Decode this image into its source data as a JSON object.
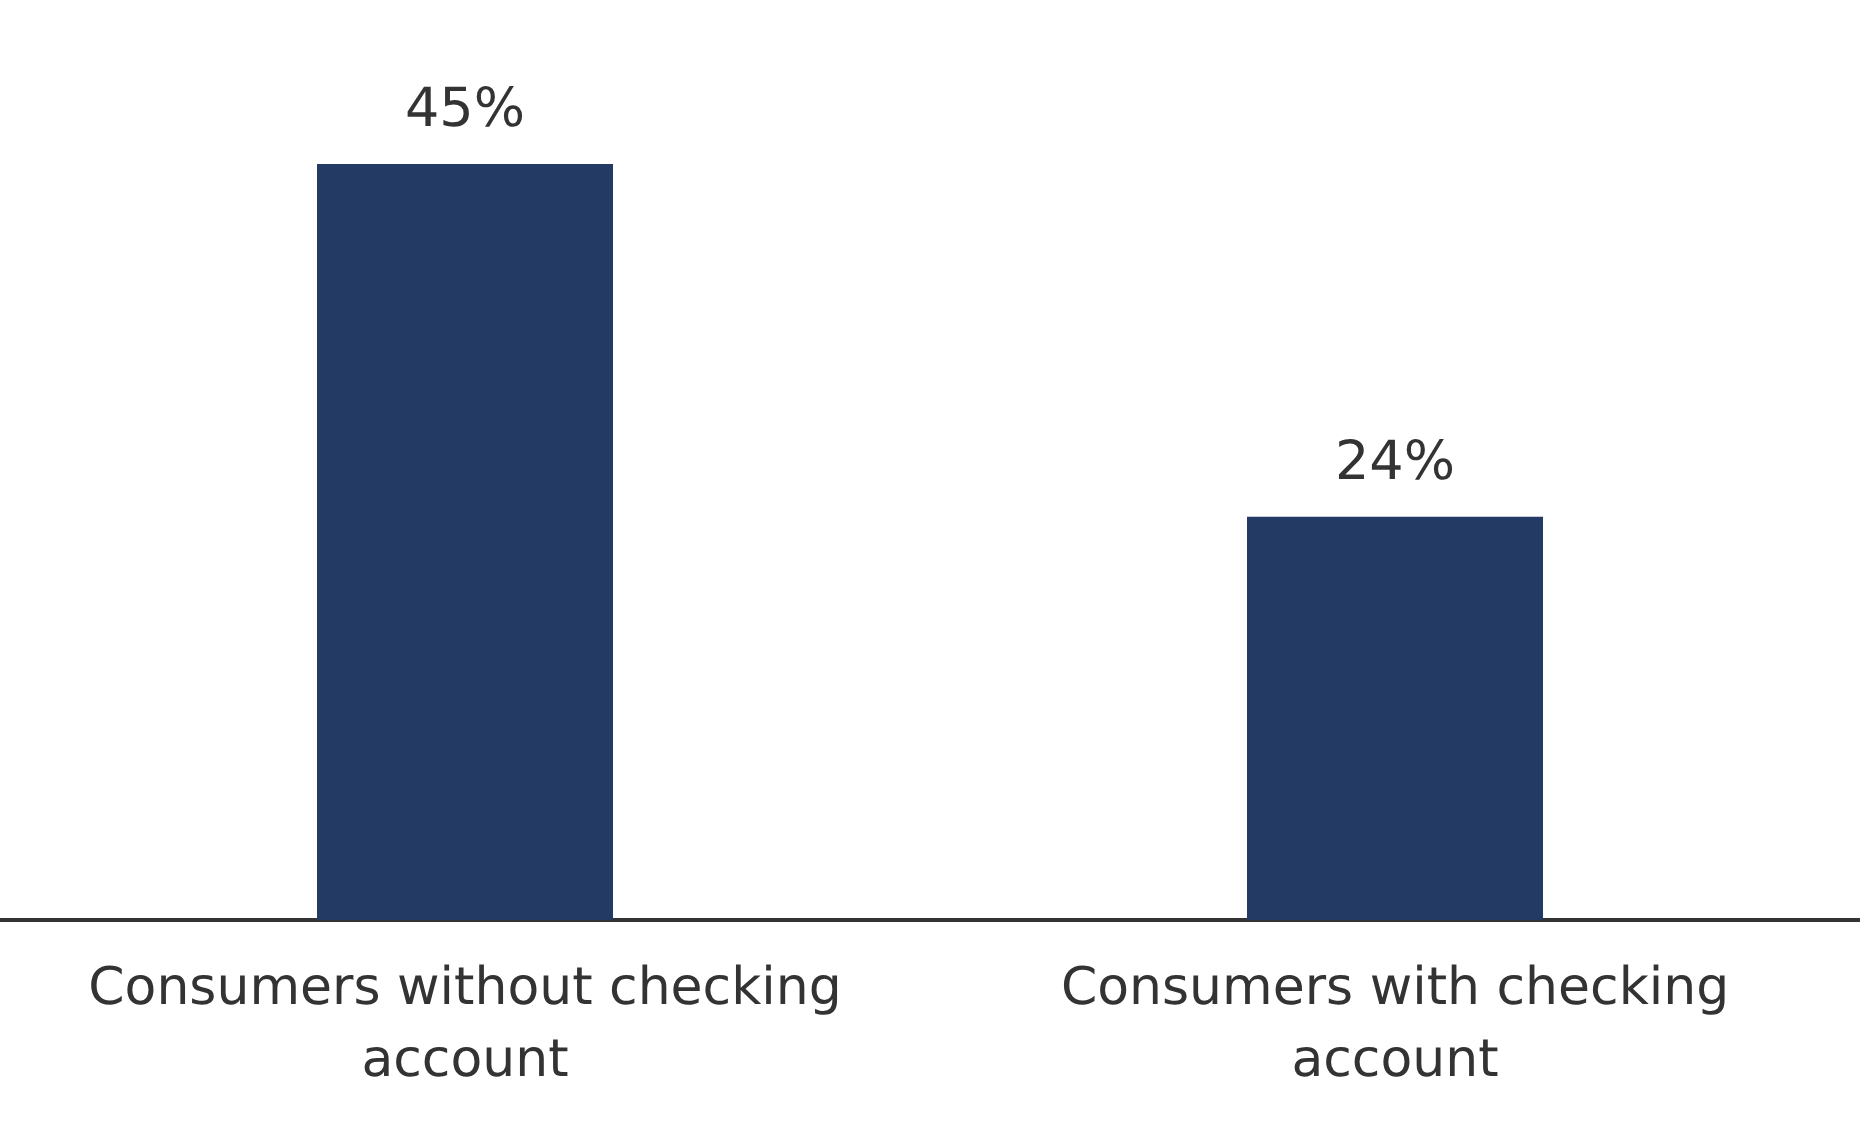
{
  "chart_data": {
    "type": "bar",
    "categories": [
      "Consumers without checking account",
      "Consumers with checking account"
    ],
    "values": [
      45,
      24
    ],
    "value_labels": [
      "45%",
      "24%"
    ],
    "color": "#233a64"
  }
}
